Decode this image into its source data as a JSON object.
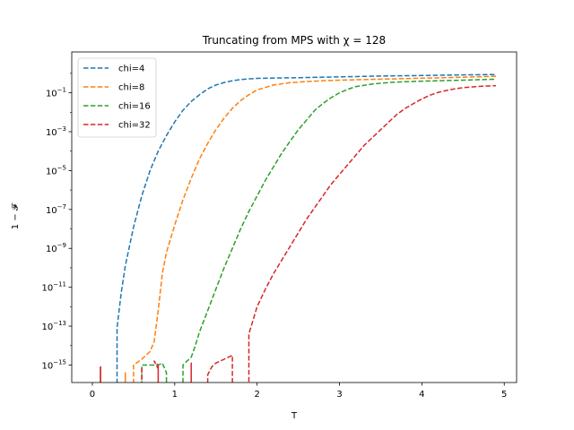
{
  "chart_data": {
    "type": "line",
    "title": "Truncating from MPS with χ = 128",
    "xlabel": "T",
    "ylabel": "1 − 𝓕",
    "xlim": [
      -0.25,
      5.15
    ],
    "ylim_log10": [
      -15.9,
      1.1
    ],
    "yscale": "log",
    "x_ticks": [
      "0",
      "1",
      "2",
      "3",
      "4",
      "5"
    ],
    "y_tick_base": "10",
    "y_tick_exponents": [
      "−1",
      "−3",
      "−5",
      "−7",
      "−9",
      "−11",
      "−13",
      "−15"
    ],
    "legend_position": "upper-left",
    "floor_log10": -16.8,
    "series": [
      {
        "name": "chi=4",
        "color": "#1f77b4",
        "points": [
          [
            0.1,
            -16.8
          ],
          [
            0.1,
            -15.1
          ],
          [
            0.1,
            -16.8
          ],
          [
            0.3,
            -16.8
          ],
          [
            0.3,
            -13.1
          ],
          [
            0.35,
            -11.3
          ],
          [
            0.4,
            -9.9
          ],
          [
            0.5,
            -7.9
          ],
          [
            0.6,
            -6.3
          ],
          [
            0.7,
            -5.0
          ],
          [
            0.8,
            -4.0
          ],
          [
            0.9,
            -3.2
          ],
          [
            1.0,
            -2.5
          ],
          [
            1.1,
            -1.9
          ],
          [
            1.2,
            -1.45
          ],
          [
            1.3,
            -1.1
          ],
          [
            1.4,
            -0.8
          ],
          [
            1.5,
            -0.6
          ],
          [
            1.6,
            -0.47
          ],
          [
            1.7,
            -0.38
          ],
          [
            1.8,
            -0.32
          ],
          [
            1.9,
            -0.28
          ],
          [
            2.0,
            -0.26
          ],
          [
            2.2,
            -0.24
          ],
          [
            2.5,
            -0.22
          ],
          [
            3.0,
            -0.18
          ],
          [
            3.5,
            -0.14
          ],
          [
            4.0,
            -0.11
          ],
          [
            4.5,
            -0.08
          ],
          [
            4.9,
            -0.06
          ]
        ]
      },
      {
        "name": "chi=8",
        "color": "#ff7f0e",
        "points": [
          [
            0.1,
            -16.8
          ],
          [
            0.1,
            -15.1
          ],
          [
            0.1,
            -16.8
          ],
          [
            0.4,
            -16.8
          ],
          [
            0.4,
            -15.4
          ],
          [
            0.4,
            -16.8
          ],
          [
            0.5,
            -16.8
          ],
          [
            0.5,
            -15.0
          ],
          [
            0.6,
            -14.7
          ],
          [
            0.7,
            -14.3
          ],
          [
            0.75,
            -13.8
          ],
          [
            0.8,
            -12.2
          ],
          [
            0.85,
            -10.3
          ],
          [
            0.9,
            -9.2
          ],
          [
            1.0,
            -7.8
          ],
          [
            1.1,
            -6.5
          ],
          [
            1.2,
            -5.4
          ],
          [
            1.3,
            -4.4
          ],
          [
            1.4,
            -3.6
          ],
          [
            1.5,
            -2.9
          ],
          [
            1.6,
            -2.3
          ],
          [
            1.7,
            -1.8
          ],
          [
            1.8,
            -1.4
          ],
          [
            1.9,
            -1.1
          ],
          [
            2.0,
            -0.85
          ],
          [
            2.2,
            -0.6
          ],
          [
            2.4,
            -0.48
          ],
          [
            2.6,
            -0.42
          ],
          [
            2.8,
            -0.38
          ],
          [
            3.0,
            -0.35
          ],
          [
            3.5,
            -0.3
          ],
          [
            4.0,
            -0.25
          ],
          [
            4.5,
            -0.2
          ],
          [
            4.9,
            -0.15
          ]
        ]
      },
      {
        "name": "chi=16",
        "color": "#2ca02c",
        "points": [
          [
            0.6,
            -16.8
          ],
          [
            0.6,
            -15.0
          ],
          [
            0.8,
            -15.0
          ],
          [
            0.85,
            -14.9
          ],
          [
            0.9,
            -15.4
          ],
          [
            0.9,
            -16.8
          ],
          [
            1.1,
            -16.8
          ],
          [
            1.1,
            -15.0
          ],
          [
            1.15,
            -14.8
          ],
          [
            1.2,
            -14.6
          ],
          [
            1.25,
            -14.0
          ],
          [
            1.3,
            -13.3
          ],
          [
            1.4,
            -12.2
          ],
          [
            1.5,
            -11.1
          ],
          [
            1.6,
            -10.0
          ],
          [
            1.7,
            -9.0
          ],
          [
            1.8,
            -8.0
          ],
          [
            1.9,
            -7.1
          ],
          [
            2.0,
            -6.3
          ],
          [
            2.1,
            -5.5
          ],
          [
            2.2,
            -4.8
          ],
          [
            2.3,
            -4.1
          ],
          [
            2.4,
            -3.5
          ],
          [
            2.5,
            -2.9
          ],
          [
            2.6,
            -2.4
          ],
          [
            2.7,
            -1.9
          ],
          [
            2.8,
            -1.55
          ],
          [
            2.9,
            -1.25
          ],
          [
            3.0,
            -1.0
          ],
          [
            3.1,
            -0.82
          ],
          [
            3.2,
            -0.68
          ],
          [
            3.4,
            -0.55
          ],
          [
            3.6,
            -0.47
          ],
          [
            3.8,
            -0.43
          ],
          [
            4.0,
            -0.4
          ],
          [
            4.5,
            -0.35
          ],
          [
            4.9,
            -0.3
          ]
        ]
      },
      {
        "name": "chi=32",
        "color": "#d62728",
        "points": [
          [
            0.1,
            -16.8
          ],
          [
            0.1,
            -15.1
          ],
          [
            0.1,
            -16.8
          ],
          [
            0.6,
            -16.8
          ],
          [
            0.6,
            -15.1
          ],
          [
            0.6,
            -16.8
          ],
          [
            0.8,
            -16.8
          ],
          [
            0.8,
            -15.2
          ],
          [
            0.75,
            -14.8
          ],
          [
            0.8,
            -15.0
          ],
          [
            0.8,
            -16.8
          ],
          [
            1.2,
            -16.8
          ],
          [
            1.2,
            -14.9
          ],
          [
            1.2,
            -16.8
          ],
          [
            1.4,
            -16.8
          ],
          [
            1.4,
            -15.5
          ],
          [
            1.45,
            -15.1
          ],
          [
            1.5,
            -14.9
          ],
          [
            1.6,
            -14.7
          ],
          [
            1.7,
            -14.5
          ],
          [
            1.7,
            -16.8
          ],
          [
            1.9,
            -16.8
          ],
          [
            1.9,
            -13.4
          ],
          [
            2.0,
            -12.0
          ],
          [
            2.1,
            -11.1
          ],
          [
            2.2,
            -10.3
          ],
          [
            2.3,
            -9.6
          ],
          [
            2.4,
            -8.9
          ],
          [
            2.5,
            -8.2
          ],
          [
            2.6,
            -7.5
          ],
          [
            2.7,
            -6.9
          ],
          [
            2.8,
            -6.3
          ],
          [
            2.9,
            -5.7
          ],
          [
            3.0,
            -5.2
          ],
          [
            3.1,
            -4.7
          ],
          [
            3.2,
            -4.2
          ],
          [
            3.3,
            -3.7
          ],
          [
            3.4,
            -3.3
          ],
          [
            3.5,
            -2.9
          ],
          [
            3.6,
            -2.5
          ],
          [
            3.7,
            -2.1
          ],
          [
            3.8,
            -1.8
          ],
          [
            3.9,
            -1.55
          ],
          [
            4.0,
            -1.32
          ],
          [
            4.1,
            -1.12
          ],
          [
            4.2,
            -0.98
          ],
          [
            4.3,
            -0.88
          ],
          [
            4.4,
            -0.8
          ],
          [
            4.5,
            -0.74
          ],
          [
            4.6,
            -0.7
          ],
          [
            4.7,
            -0.67
          ],
          [
            4.8,
            -0.65
          ],
          [
            4.9,
            -0.63
          ]
        ]
      }
    ]
  }
}
